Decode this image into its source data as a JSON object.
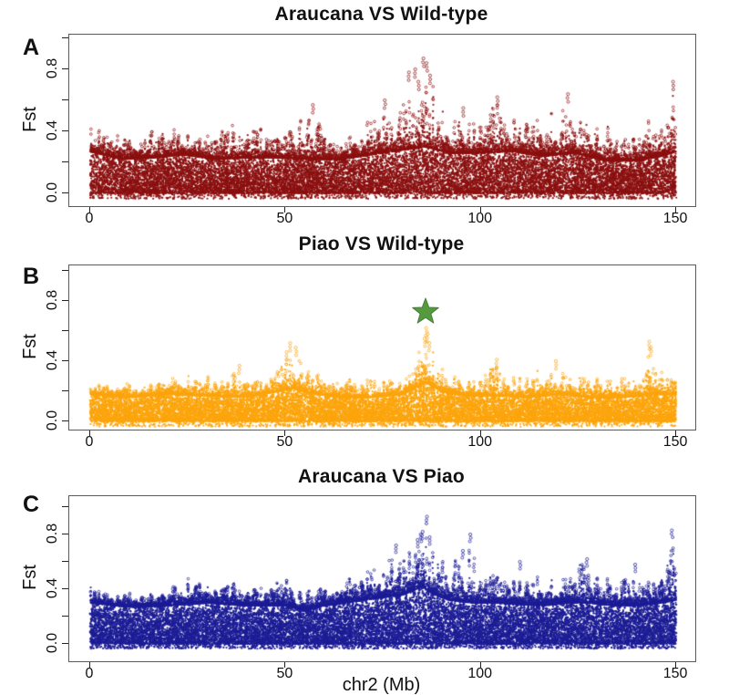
{
  "figure": {
    "background": "#ffffff",
    "x_axis_label": "chr2 (Mb)",
    "x_tick_labels": [
      "0",
      "50",
      "100",
      "150"
    ],
    "x_tick_values": [
      0,
      50,
      100,
      150
    ],
    "y_axis_label": "Fst",
    "y_tick_labels": [
      "0.0",
      "0.4",
      "0.8"
    ],
    "y_tick_values": [
      0,
      0.4,
      0.8
    ],
    "y_minor_tick_step": 0.2,
    "axis_color": "#222222",
    "box_color": "#5a5a5a"
  },
  "chart_data": [
    {
      "panel": "A",
      "type": "scatter",
      "title": "Araucana VS Wild-type",
      "ylabel": "Fst",
      "xlabel": "chr2 (Mb)",
      "color": "#8B1010",
      "xlim": [
        0,
        150
      ],
      "ylim": [
        0,
        1.0
      ],
      "x_unit": "Mb",
      "max_point": {
        "x_mb": 85.3,
        "fst": 0.88
      },
      "baseline_envelope": [
        [
          0,
          0.27
        ],
        [
          8,
          0.22
        ],
        [
          16,
          0.23
        ],
        [
          24,
          0.25
        ],
        [
          32,
          0.22
        ],
        [
          40,
          0.23
        ],
        [
          48,
          0.23
        ],
        [
          56,
          0.22
        ],
        [
          64,
          0.22
        ],
        [
          72,
          0.25
        ],
        [
          80,
          0.28
        ],
        [
          86,
          0.3
        ],
        [
          92,
          0.26
        ],
        [
          100,
          0.26
        ],
        [
          108,
          0.27
        ],
        [
          116,
          0.24
        ],
        [
          124,
          0.26
        ],
        [
          132,
          0.21
        ],
        [
          140,
          0.21
        ],
        [
          146,
          0.24
        ],
        [
          150,
          0.27
        ]
      ],
      "peak_envelope": [
        [
          0,
          0.46
        ],
        [
          4,
          0.43
        ],
        [
          8,
          0.38
        ],
        [
          13,
          0.42
        ],
        [
          18,
          0.4
        ],
        [
          23,
          0.47
        ],
        [
          28,
          0.38
        ],
        [
          33,
          0.43
        ],
        [
          37,
          0.45
        ],
        [
          41,
          0.42
        ],
        [
          45,
          0.46
        ],
        [
          49,
          0.43
        ],
        [
          52,
          0.5
        ],
        [
          56,
          0.57
        ],
        [
          60,
          0.45
        ],
        [
          64,
          0.4
        ],
        [
          68,
          0.38
        ],
        [
          72,
          0.55
        ],
        [
          75,
          0.62
        ],
        [
          78,
          0.56
        ],
        [
          81,
          0.79
        ],
        [
          83,
          0.73
        ],
        [
          85,
          0.88
        ],
        [
          87,
          0.8
        ],
        [
          89,
          0.62
        ],
        [
          92,
          0.56
        ],
        [
          95,
          0.55
        ],
        [
          98,
          0.48
        ],
        [
          101,
          0.5
        ],
        [
          104,
          0.63
        ],
        [
          107,
          0.52
        ],
        [
          110,
          0.48
        ],
        [
          113,
          0.52
        ],
        [
          116,
          0.56
        ],
        [
          119,
          0.52
        ],
        [
          122,
          0.64
        ],
        [
          125,
          0.56
        ],
        [
          128,
          0.5
        ],
        [
          131,
          0.46
        ],
        [
          134,
          0.44
        ],
        [
          137,
          0.38
        ],
        [
          140,
          0.45
        ],
        [
          143,
          0.5
        ],
        [
          146,
          0.42
        ],
        [
          148,
          0.5
        ],
        [
          149.5,
          0.72
        ],
        [
          150,
          0.44
        ]
      ],
      "top_outliers": [
        [
          85.3,
          0.87
        ],
        [
          86.1,
          0.84
        ],
        [
          83.2,
          0.8
        ],
        [
          81.6,
          0.78
        ],
        [
          87.0,
          0.76
        ],
        [
          84.0,
          0.72
        ],
        [
          149.2,
          0.72
        ],
        [
          122.3,
          0.64
        ],
        [
          104.2,
          0.62
        ],
        [
          75.4,
          0.6
        ],
        [
          57.0,
          0.57
        ],
        [
          95.5,
          0.55
        ]
      ]
    },
    {
      "panel": "B",
      "type": "scatter",
      "title": "Piao VS Wild-type",
      "ylabel": "Fst",
      "xlabel": "chr2 (Mb)",
      "color": "#FCA40C",
      "xlim": [
        0,
        150
      ],
      "ylim": [
        0,
        1.0
      ],
      "x_unit": "Mb",
      "max_point": {
        "x_mb": 86.0,
        "fst": 0.62
      },
      "annotation": {
        "shape": "star",
        "x_mb": 86,
        "fst": 0.72,
        "color": "#569A40",
        "stroke": "#477F35"
      },
      "baseline_envelope": [
        [
          0,
          0.18
        ],
        [
          10,
          0.16
        ],
        [
          20,
          0.18
        ],
        [
          30,
          0.17
        ],
        [
          40,
          0.16
        ],
        [
          48,
          0.2
        ],
        [
          52,
          0.22
        ],
        [
          56,
          0.19
        ],
        [
          64,
          0.16
        ],
        [
          72,
          0.16
        ],
        [
          80,
          0.18
        ],
        [
          86,
          0.26
        ],
        [
          90,
          0.2
        ],
        [
          96,
          0.17
        ],
        [
          104,
          0.17
        ],
        [
          112,
          0.16
        ],
        [
          120,
          0.18
        ],
        [
          128,
          0.16
        ],
        [
          136,
          0.16
        ],
        [
          144,
          0.18
        ],
        [
          150,
          0.18
        ]
      ],
      "peak_envelope": [
        [
          0,
          0.26
        ],
        [
          5,
          0.24
        ],
        [
          10,
          0.28
        ],
        [
          15,
          0.25
        ],
        [
          20,
          0.28
        ],
        [
          25,
          0.32
        ],
        [
          30,
          0.3
        ],
        [
          35,
          0.27
        ],
        [
          38,
          0.37
        ],
        [
          42,
          0.28
        ],
        [
          46,
          0.31
        ],
        [
          49,
          0.46
        ],
        [
          51,
          0.52
        ],
        [
          53,
          0.49
        ],
        [
          55,
          0.4
        ],
        [
          57,
          0.38
        ],
        [
          60,
          0.31
        ],
        [
          63,
          0.37
        ],
        [
          66,
          0.3
        ],
        [
          70,
          0.33
        ],
        [
          74,
          0.28
        ],
        [
          78,
          0.31
        ],
        [
          82,
          0.38
        ],
        [
          84,
          0.5
        ],
        [
          86,
          0.63
        ],
        [
          88,
          0.48
        ],
        [
          90,
          0.38
        ],
        [
          93,
          0.32
        ],
        [
          96,
          0.3
        ],
        [
          100,
          0.3
        ],
        [
          104,
          0.41
        ],
        [
          108,
          0.3
        ],
        [
          112,
          0.32
        ],
        [
          116,
          0.36
        ],
        [
          119,
          0.41
        ],
        [
          122,
          0.32
        ],
        [
          126,
          0.3
        ],
        [
          130,
          0.32
        ],
        [
          134,
          0.3
        ],
        [
          138,
          0.32
        ],
        [
          141,
          0.34
        ],
        [
          143,
          0.54
        ],
        [
          145,
          0.37
        ],
        [
          148,
          0.32
        ],
        [
          150,
          0.3
        ]
      ],
      "top_outliers": [
        [
          86.0,
          0.62
        ],
        [
          86.4,
          0.58
        ],
        [
          85.6,
          0.55
        ],
        [
          86.8,
          0.52
        ],
        [
          51.2,
          0.52
        ],
        [
          52.6,
          0.49
        ],
        [
          50.3,
          0.46
        ],
        [
          143.1,
          0.53
        ],
        [
          143.5,
          0.49
        ],
        [
          104.1,
          0.41
        ],
        [
          119.2,
          0.4
        ],
        [
          38.2,
          0.37
        ]
      ]
    },
    {
      "panel": "C",
      "type": "scatter",
      "title": "Araucana VS Piao",
      "ylabel": "Fst",
      "xlabel": "chr2 (Mb)",
      "color": "#1C1C96",
      "xlim": [
        0,
        150
      ],
      "ylim": [
        0,
        1.0
      ],
      "x_unit": "Mb",
      "max_point": {
        "x_mb": 86.2,
        "fst": 0.93
      },
      "baseline_envelope": [
        [
          0,
          0.3
        ],
        [
          10,
          0.27
        ],
        [
          20,
          0.28
        ],
        [
          30,
          0.3
        ],
        [
          40,
          0.28
        ],
        [
          50,
          0.28
        ],
        [
          55,
          0.24
        ],
        [
          60,
          0.28
        ],
        [
          65,
          0.3
        ],
        [
          70,
          0.32
        ],
        [
          75,
          0.34
        ],
        [
          80,
          0.36
        ],
        [
          85,
          0.42
        ],
        [
          88,
          0.36
        ],
        [
          92,
          0.32
        ],
        [
          98,
          0.3
        ],
        [
          104,
          0.3
        ],
        [
          110,
          0.29
        ],
        [
          116,
          0.28
        ],
        [
          122,
          0.3
        ],
        [
          128,
          0.3
        ],
        [
          134,
          0.28
        ],
        [
          140,
          0.28
        ],
        [
          146,
          0.3
        ],
        [
          150,
          0.32
        ]
      ],
      "peak_envelope": [
        [
          0,
          0.46
        ],
        [
          3,
          0.38
        ],
        [
          6,
          0.35
        ],
        [
          9,
          0.38
        ],
        [
          12,
          0.4
        ],
        [
          15,
          0.38
        ],
        [
          18,
          0.35
        ],
        [
          21,
          0.42
        ],
        [
          24,
          0.5
        ],
        [
          26,
          0.48
        ],
        [
          29,
          0.44
        ],
        [
          32,
          0.42
        ],
        [
          35,
          0.46
        ],
        [
          38,
          0.44
        ],
        [
          41,
          0.4
        ],
        [
          44,
          0.44
        ],
        [
          47,
          0.46
        ],
        [
          50,
          0.56
        ],
        [
          53,
          0.4
        ],
        [
          56,
          0.44
        ],
        [
          59,
          0.46
        ],
        [
          62,
          0.44
        ],
        [
          65,
          0.5
        ],
        [
          68,
          0.56
        ],
        [
          70,
          0.6
        ],
        [
          72,
          0.58
        ],
        [
          74,
          0.56
        ],
        [
          76,
          0.62
        ],
        [
          78,
          0.72
        ],
        [
          80,
          0.76
        ],
        [
          82,
          0.78
        ],
        [
          84,
          0.82
        ],
        [
          86,
          0.93
        ],
        [
          88,
          0.78
        ],
        [
          90,
          0.66
        ],
        [
          92,
          0.62
        ],
        [
          95,
          0.68
        ],
        [
          97,
          0.8
        ],
        [
          100,
          0.5
        ],
        [
          103,
          0.52
        ],
        [
          106,
          0.56
        ],
        [
          109,
          0.5
        ],
        [
          112,
          0.48
        ],
        [
          115,
          0.52
        ],
        [
          118,
          0.48
        ],
        [
          121,
          0.5
        ],
        [
          124,
          0.58
        ],
        [
          127,
          0.62
        ],
        [
          130,
          0.52
        ],
        [
          133,
          0.48
        ],
        [
          136,
          0.5
        ],
        [
          139,
          0.58
        ],
        [
          142,
          0.54
        ],
        [
          145,
          0.48
        ],
        [
          147,
          0.5
        ],
        [
          149,
          0.83
        ],
        [
          150,
          0.5
        ]
      ],
      "top_outliers": [
        [
          86.2,
          0.93
        ],
        [
          85.1,
          0.82
        ],
        [
          84.6,
          0.8
        ],
        [
          86.9,
          0.78
        ],
        [
          83.8,
          0.76
        ],
        [
          97.3,
          0.8
        ],
        [
          148.9,
          0.83
        ],
        [
          127.2,
          0.62
        ],
        [
          95.4,
          0.68
        ],
        [
          78.3,
          0.72
        ],
        [
          110.0,
          0.6
        ],
        [
          139.5,
          0.58
        ]
      ]
    }
  ]
}
